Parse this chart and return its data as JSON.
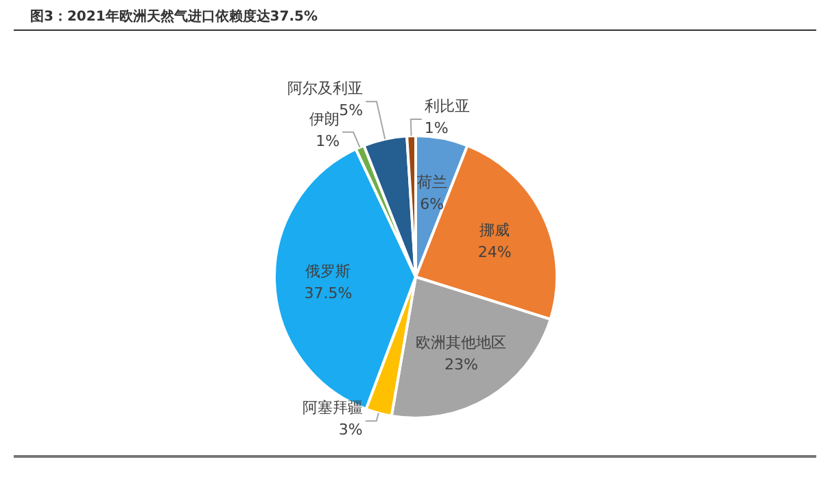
{
  "chart_data": {
    "type": "pie",
    "title": "图3：2021年欧洲天然气进口依赖度达37.5%",
    "categories": [
      "荷兰",
      "挪威",
      "欧洲其他地区",
      "阿塞拜疆",
      "俄罗斯",
      "伊朗",
      "阿尔及利亚",
      "利比亚"
    ],
    "values": [
      6,
      24,
      23,
      3,
      37.5,
      1,
      5,
      1
    ],
    "value_labels": [
      "6%",
      "24%",
      "23%",
      "3%",
      "37.5%",
      "1%",
      "5%",
      "1%"
    ],
    "colors": [
      "#5b9bd5",
      "#ed7d31",
      "#a5a5a5",
      "#ffc000",
      "#1aabf0",
      "#70ad47",
      "#255e91",
      "#9e480e"
    ]
  }
}
